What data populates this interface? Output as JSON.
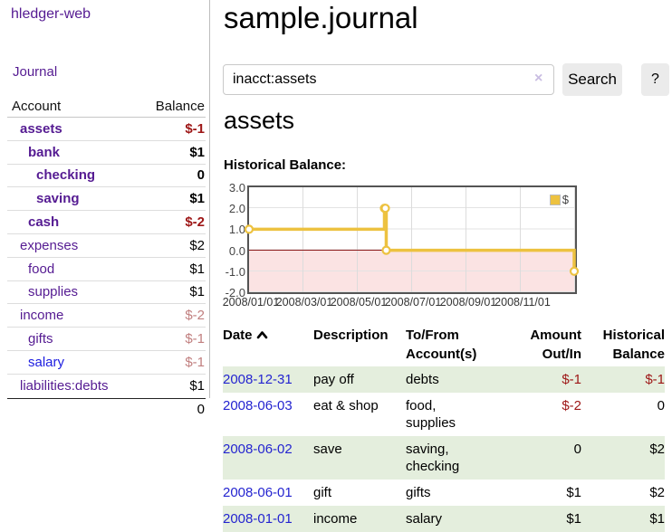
{
  "colors": {
    "link_purple": "#551b92",
    "link_blue": "#1d1de0",
    "date_link_blue": "#2424d0",
    "negative_strong": "#9d1616",
    "negative_soft": "#c17f7f",
    "row_stripe_green": "#e4eedd",
    "chart_line_yellow": "#EDC240",
    "chart_negative_fill": "#fbe3e3",
    "chart_zero_line": "#8b1a1a",
    "button_gray": "#ebebeb"
  },
  "sidebar": {
    "app_title": "hledger-web",
    "nav_journal": "Journal",
    "header_account": "Account",
    "header_balance": "Balance",
    "accounts": [
      {
        "label": "assets",
        "indent": 1,
        "selected": true,
        "balance": "$-1",
        "negative": "strong",
        "link_color": "purple"
      },
      {
        "label": "bank",
        "indent": 2,
        "selected": true,
        "balance": "$1",
        "negative": "none",
        "link_color": "purple"
      },
      {
        "label": "checking",
        "indent": 3,
        "selected": true,
        "balance": "0",
        "negative": "none",
        "link_color": "purple"
      },
      {
        "label": "saving",
        "indent": 3,
        "selected": true,
        "balance": "$1",
        "negative": "none",
        "link_color": "purple"
      },
      {
        "label": "cash",
        "indent": 2,
        "selected": true,
        "balance": "$-2",
        "negative": "strong",
        "link_color": "purple"
      },
      {
        "label": "expenses",
        "indent": 1,
        "selected": false,
        "balance": "$2",
        "negative": "none",
        "link_color": "purple"
      },
      {
        "label": "food",
        "indent": 2,
        "selected": false,
        "balance": "$1",
        "negative": "none",
        "link_color": "purple"
      },
      {
        "label": "supplies",
        "indent": 2,
        "selected": false,
        "balance": "$1",
        "negative": "none",
        "link_color": "purple"
      },
      {
        "label": "income",
        "indent": 1,
        "selected": false,
        "balance": "$-2",
        "negative": "soft",
        "link_color": "purple"
      },
      {
        "label": "gifts",
        "indent": 2,
        "selected": false,
        "balance": "$-1",
        "negative": "soft",
        "link_color": "purple"
      },
      {
        "label": "salary",
        "indent": 2,
        "selected": false,
        "balance": "$-1",
        "negative": "soft",
        "link_color": "blue"
      },
      {
        "label": "liabilities:debts",
        "indent": 1,
        "selected": false,
        "balance": "$1",
        "negative": "none",
        "link_color": "purple"
      }
    ],
    "total": "0"
  },
  "main": {
    "title": "sample.journal",
    "search": {
      "value": "inacct:assets",
      "clear_icon": "×",
      "search_button": "Search",
      "help_button": "?"
    },
    "section_title": "assets",
    "chart_label": "Historical Balance:"
  },
  "chart_data": {
    "type": "line",
    "step": true,
    "title": "Historical Balance:",
    "series": [
      {
        "name": "$",
        "color": "#EDC240",
        "points": [
          [
            "2008-01-01",
            1
          ],
          [
            "2008-06-01",
            2
          ],
          [
            "2008-06-02",
            2
          ],
          [
            "2008-06-03",
            0
          ],
          [
            "2008-12-31",
            -1
          ]
        ]
      }
    ],
    "xrange": [
      "2008-01-01",
      "2009-01-01"
    ],
    "ylim": [
      -2,
      3
    ],
    "yticks": [
      "3.0",
      "2.0",
      "1.0",
      "0.0",
      "-1.0",
      "-2.0"
    ],
    "xticks": [
      "2008/01/01",
      "2008/03/01",
      "2008/05/01",
      "2008/07/01",
      "2008/09/01",
      "2008/11/01"
    ],
    "legend_position": "top-right",
    "grid": true,
    "negative_region_shaded": true
  },
  "register": {
    "headers": {
      "date": "Date",
      "description": "Description",
      "accounts": "To/From Account(s)",
      "amount": "Amount Out/In",
      "balance": "Historical Balance"
    },
    "sort": {
      "column": "date",
      "direction": "ascending"
    },
    "rows": [
      {
        "date": "2008-12-31",
        "description": "pay off",
        "accounts": "debts",
        "amount": "$-1",
        "balance": "$-1"
      },
      {
        "date": "2008-06-03",
        "description": "eat & shop",
        "accounts": "food, supplies",
        "amount": "$-2",
        "balance": "0"
      },
      {
        "date": "2008-06-02",
        "description": "save",
        "accounts": "saving, checking",
        "amount": "0",
        "balance": "$2"
      },
      {
        "date": "2008-06-01",
        "description": "gift",
        "accounts": "gifts",
        "amount": "$1",
        "balance": "$2"
      },
      {
        "date": "2008-01-01",
        "description": "income",
        "accounts": "salary",
        "amount": "$1",
        "balance": "$1"
      }
    ]
  }
}
